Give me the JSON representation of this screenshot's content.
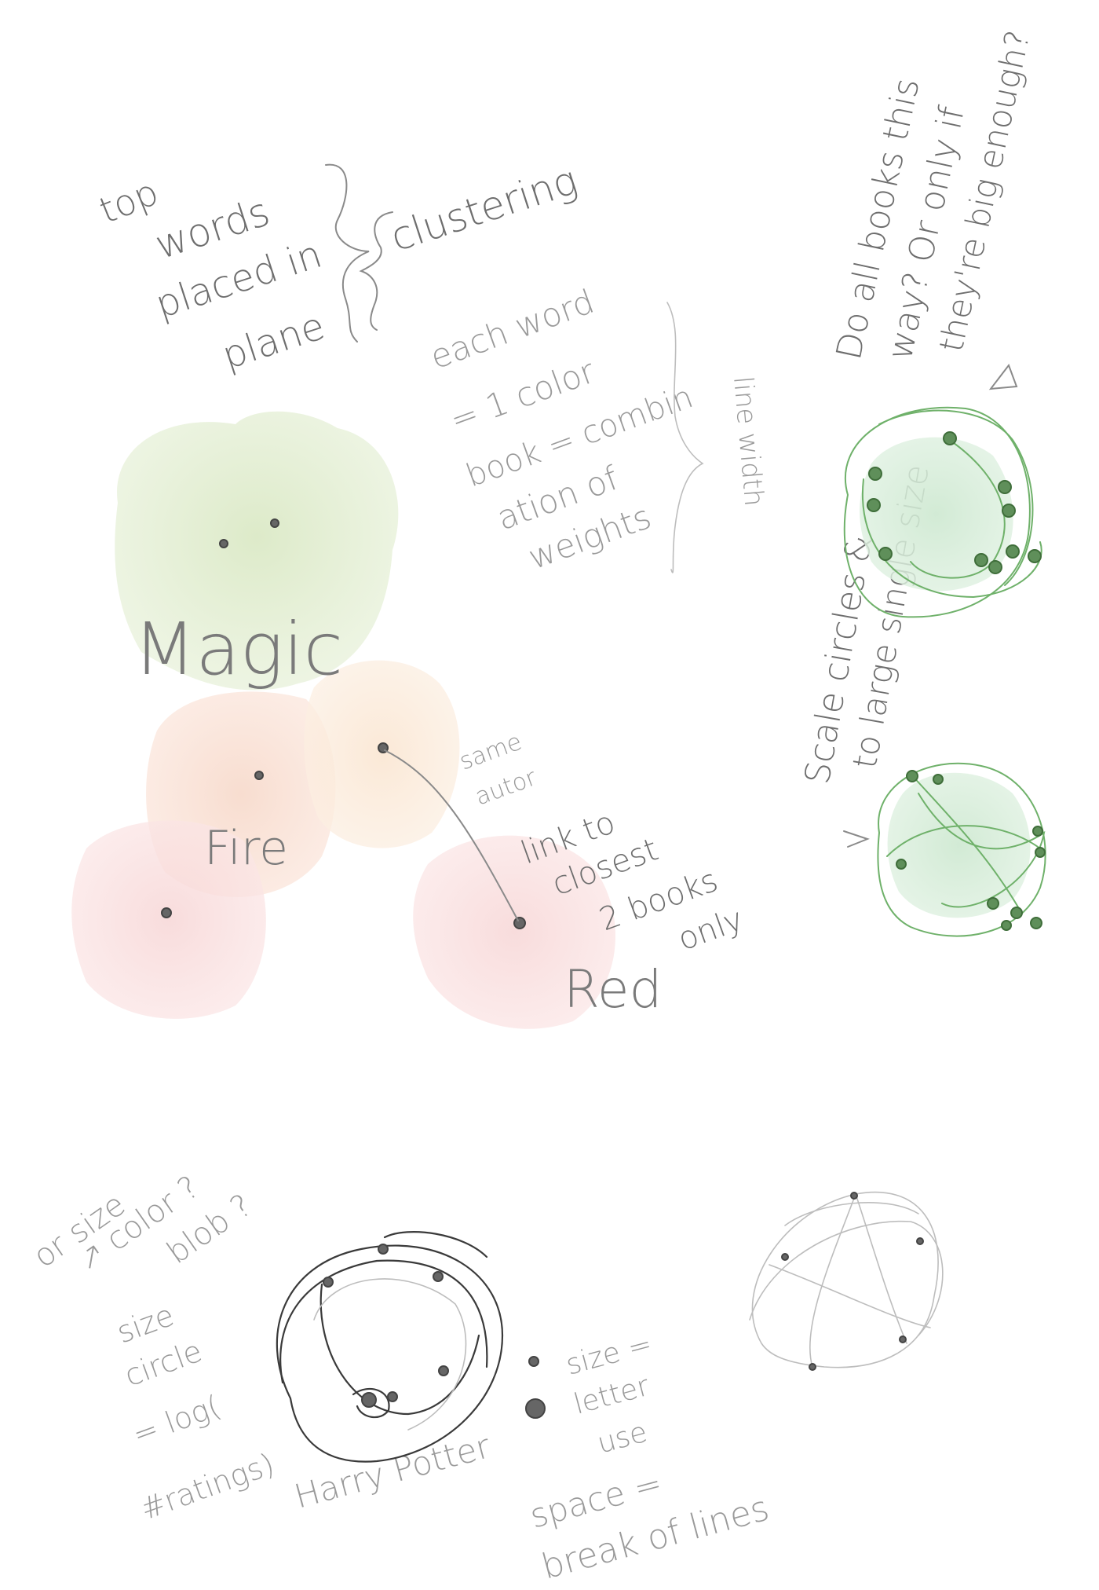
{
  "colors": {
    "paper": "#ffffff",
    "pencil": "#6e6e6e",
    "magic_blob": "#dfeccd",
    "fire_blob": "#f6d3c3",
    "orange_blob": "#f8e1cb",
    "red_blob": "#f7d2d2",
    "green_blob": "#cfe9d2",
    "green_stroke": "#6fb16a"
  },
  "notes": {
    "top": "top",
    "words": "words",
    "placed_in": "placed in",
    "plane": "plane",
    "clustering": "clustering",
    "each_word": "each word",
    "one_color": "= 1  color",
    "book_combin": "book = combin",
    "ation_of": "ation of",
    "weights": "weights",
    "line_width": "line width",
    "scale_circles": "Scale circles &",
    "to_large": "to large single size",
    "do_all_books": "Do all books this",
    "way_or_only_if": "way? Or only if",
    "theyre_big_enough": "they're big enough?",
    "same": "same",
    "autor": "autor",
    "link_to": "link to",
    "closest": "closest",
    "two_books": "2 books",
    "only": "only",
    "or_size": "or size",
    "color_q": "↗ color ?",
    "blob_q": "blob ?",
    "size": "size",
    "circle": "circle",
    "log": "= log(",
    "ratings": "#ratings)",
    "size_eq": "size =",
    "letter": "letter",
    "use": "use",
    "space_eq": "space =",
    "break_of_lines": "break of lines"
  },
  "labels": {
    "magic": "Magic",
    "fire": "Fire",
    "red": "Red",
    "harry_potter": "Harry Potter"
  }
}
